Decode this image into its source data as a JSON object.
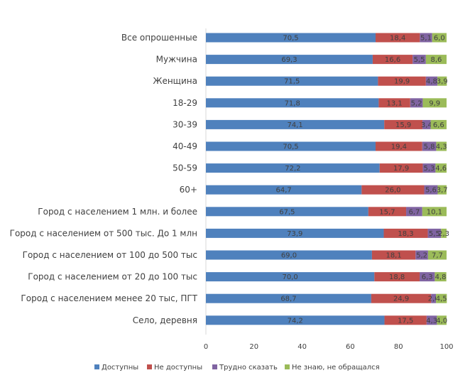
{
  "chart_data": {
    "type": "bar",
    "orientation": "horizontal",
    "stacked": true,
    "categories": [
      "Все опрошенные",
      "Мужчина",
      "Женщина",
      "18-29",
      "30-39",
      "40-49",
      "50-59",
      "60+",
      "Город с населением 1 млн. и более",
      "Город с населением от 500 тыс. До 1 млн",
      "Город с населением от 100 до 500 тыс",
      "Город с населением от 20 до 100 тыс",
      "Город с населением менее 20 тыс, ПГТ",
      "Село, деревня"
    ],
    "series": [
      {
        "name": "Доступны",
        "color": "#4F81BD",
        "values": [
          70.5,
          69.3,
          71.5,
          71.8,
          74.1,
          70.5,
          72.2,
          64.7,
          67.5,
          73.9,
          69.0,
          70.0,
          68.7,
          74.2
        ]
      },
      {
        "name": "Не доступны",
        "color": "#C0504D",
        "values": [
          18.4,
          16.6,
          19.9,
          13.1,
          15.9,
          19.4,
          17.9,
          26.0,
          15.7,
          18.3,
          18.1,
          18.8,
          24.9,
          17.5
        ]
      },
      {
        "name": "Трудно сказать",
        "color": "#8064A2",
        "values": [
          5.1,
          5.5,
          4.8,
          5.2,
          3.4,
          5.8,
          5.3,
          5.6,
          6.7,
          5.5,
          5.2,
          6.3,
          2.0,
          4.3
        ]
      },
      {
        "name": "Не знаю, не обращался",
        "color": "#9BBB59",
        "values": [
          6.0,
          8.6,
          3.9,
          9.9,
          6.6,
          4.3,
          4.6,
          3.7,
          10.1,
          2.3,
          7.7,
          4.8,
          4.5,
          4.0
        ]
      }
    ],
    "xlim": [
      0,
      100
    ],
    "xticks": [
      "0",
      "20",
      "40",
      "60",
      "80",
      "100"
    ],
    "legend_position": "bottom",
    "grid": false,
    "xlabel": "",
    "ylabel": "",
    "title": ""
  }
}
